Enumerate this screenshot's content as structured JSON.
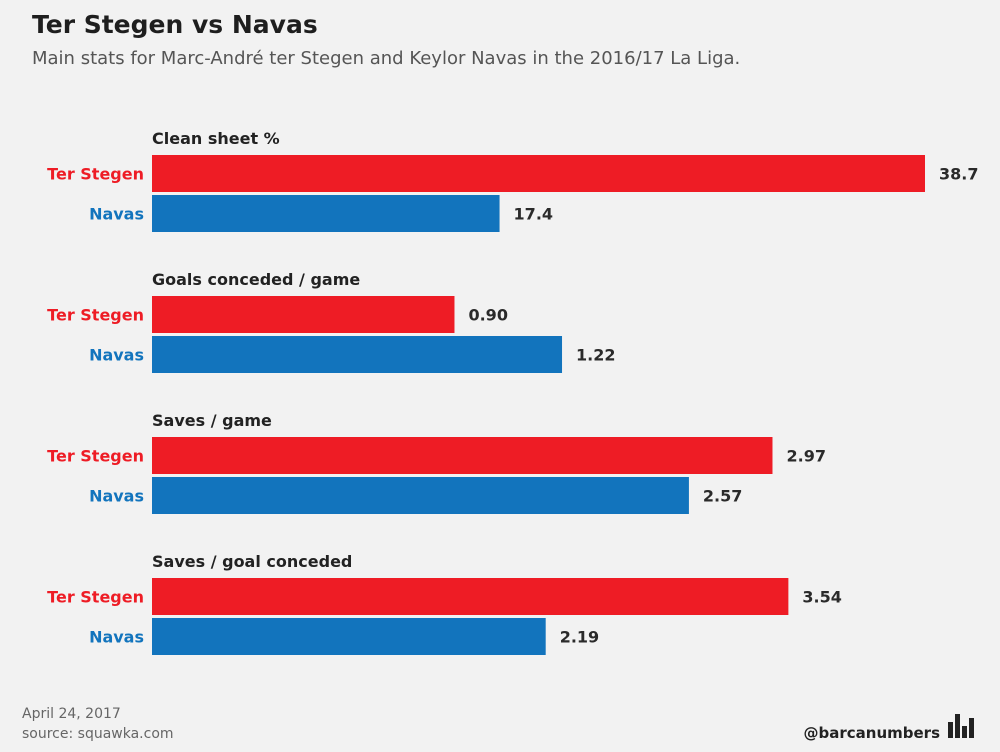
{
  "header": {
    "title": "Ter Stegen vs Navas",
    "subtitle": "Main stats for Marc-André ter Stegen and Keylor Navas in the 2016/17 La Liga."
  },
  "colors": {
    "ter_stegen": "#ee1c25",
    "navas": "#1274bd"
  },
  "chart_data": {
    "type": "bar",
    "orientation": "horizontal",
    "title": "Ter Stegen vs Navas",
    "series_names": [
      "Ter Stegen",
      "Navas"
    ],
    "groups": [
      {
        "name": "Clean sheet %",
        "values": [
          38.7,
          17.4
        ],
        "labels": [
          "38.7",
          "17.4"
        ],
        "max": 38.7
      },
      {
        "name": "Goals conceded / game",
        "values": [
          0.9,
          1.22
        ],
        "labels": [
          "0.90",
          "1.22"
        ],
        "max": 2.3
      },
      {
        "name": "Saves / game",
        "values": [
          2.97,
          2.57
        ],
        "labels": [
          "2.97",
          "2.57"
        ],
        "max": 3.7
      },
      {
        "name": "Saves / goal conceded",
        "values": [
          3.54,
          2.19
        ],
        "labels": [
          "3.54",
          "2.19"
        ],
        "max": 4.3
      }
    ]
  },
  "footer": {
    "date": "April 24, 2017",
    "source": "source: squawka.com",
    "handle": "@barcanumbers",
    "logo_icon": "bar-chart-icon"
  }
}
